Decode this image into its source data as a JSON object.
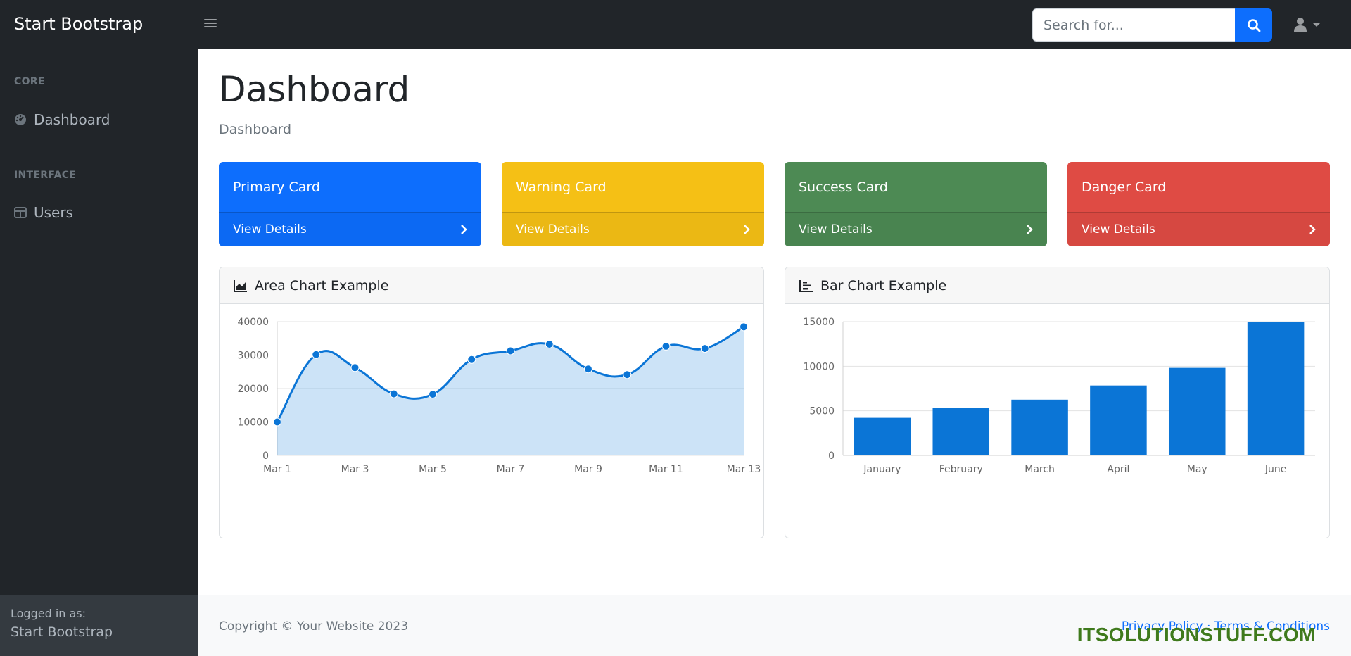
{
  "navbar": {
    "brand": "Start Bootstrap",
    "search_placeholder": "Search for...",
    "search_icon": "search-icon",
    "user_icon": "user-icon"
  },
  "sidebar": {
    "sections": [
      {
        "heading": "Core",
        "items": [
          {
            "label": "Dashboard",
            "icon": "gauge-icon"
          }
        ]
      },
      {
        "heading": "Interface",
        "items": [
          {
            "label": "Users",
            "icon": "table-icon"
          }
        ]
      }
    ],
    "footer": {
      "caption": "Logged in as:",
      "name": "Start Bootstrap"
    }
  },
  "main": {
    "title": "Dashboard",
    "breadcrumb": "Dashboard",
    "cards": [
      {
        "title": "Primary Card",
        "link": "View Details",
        "color": "#0d6efd"
      },
      {
        "title": "Warning Card",
        "link": "View Details",
        "color": "#f5c015"
      },
      {
        "title": "Success Card",
        "link": "View Details",
        "color": "#4d8a54"
      },
      {
        "title": "Danger Card",
        "link": "View Details",
        "color": "#df4b44"
      }
    ],
    "area_chart_title": "Area Chart Example",
    "bar_chart_title": "Bar Chart Example"
  },
  "chart_data": [
    {
      "type": "area",
      "title": "Area Chart Example",
      "x": [
        "Mar 1",
        "Mar 2",
        "Mar 3",
        "Mar 4",
        "Mar 5",
        "Mar 6",
        "Mar 7",
        "Mar 8",
        "Mar 9",
        "Mar 10",
        "Mar 11",
        "Mar 12",
        "Mar 13"
      ],
      "x_tick_labels": [
        "Mar 1",
        "Mar 3",
        "Mar 5",
        "Mar 7",
        "Mar 9",
        "Mar 11",
        "Mar 13"
      ],
      "values": [
        10000,
        30162,
        26263,
        18394,
        18287,
        28682,
        31274,
        33259,
        25849,
        24159,
        32651,
        31984,
        38451
      ],
      "ylim": [
        0,
        40000
      ],
      "y_ticks": [
        0,
        10000,
        20000,
        30000,
        40000
      ],
      "color": "#0b75d6",
      "fill": "rgba(2,117,216,0.2)",
      "grid": true
    },
    {
      "type": "bar",
      "title": "Bar Chart Example",
      "categories": [
        "January",
        "February",
        "March",
        "April",
        "May",
        "June"
      ],
      "values": [
        4215,
        5312,
        6251,
        7841,
        9821,
        14984
      ],
      "ylim": [
        0,
        15000
      ],
      "y_ticks": [
        0,
        5000,
        10000,
        15000
      ],
      "color": "#0b75d6",
      "grid": true
    }
  ],
  "footer": {
    "copyright": "Copyright © Your Website 2023",
    "privacy": "Privacy Policy",
    "separator": "·",
    "terms": "Terms & Conditions",
    "watermark": "ITSOLUTIONSTUFF.COM"
  }
}
